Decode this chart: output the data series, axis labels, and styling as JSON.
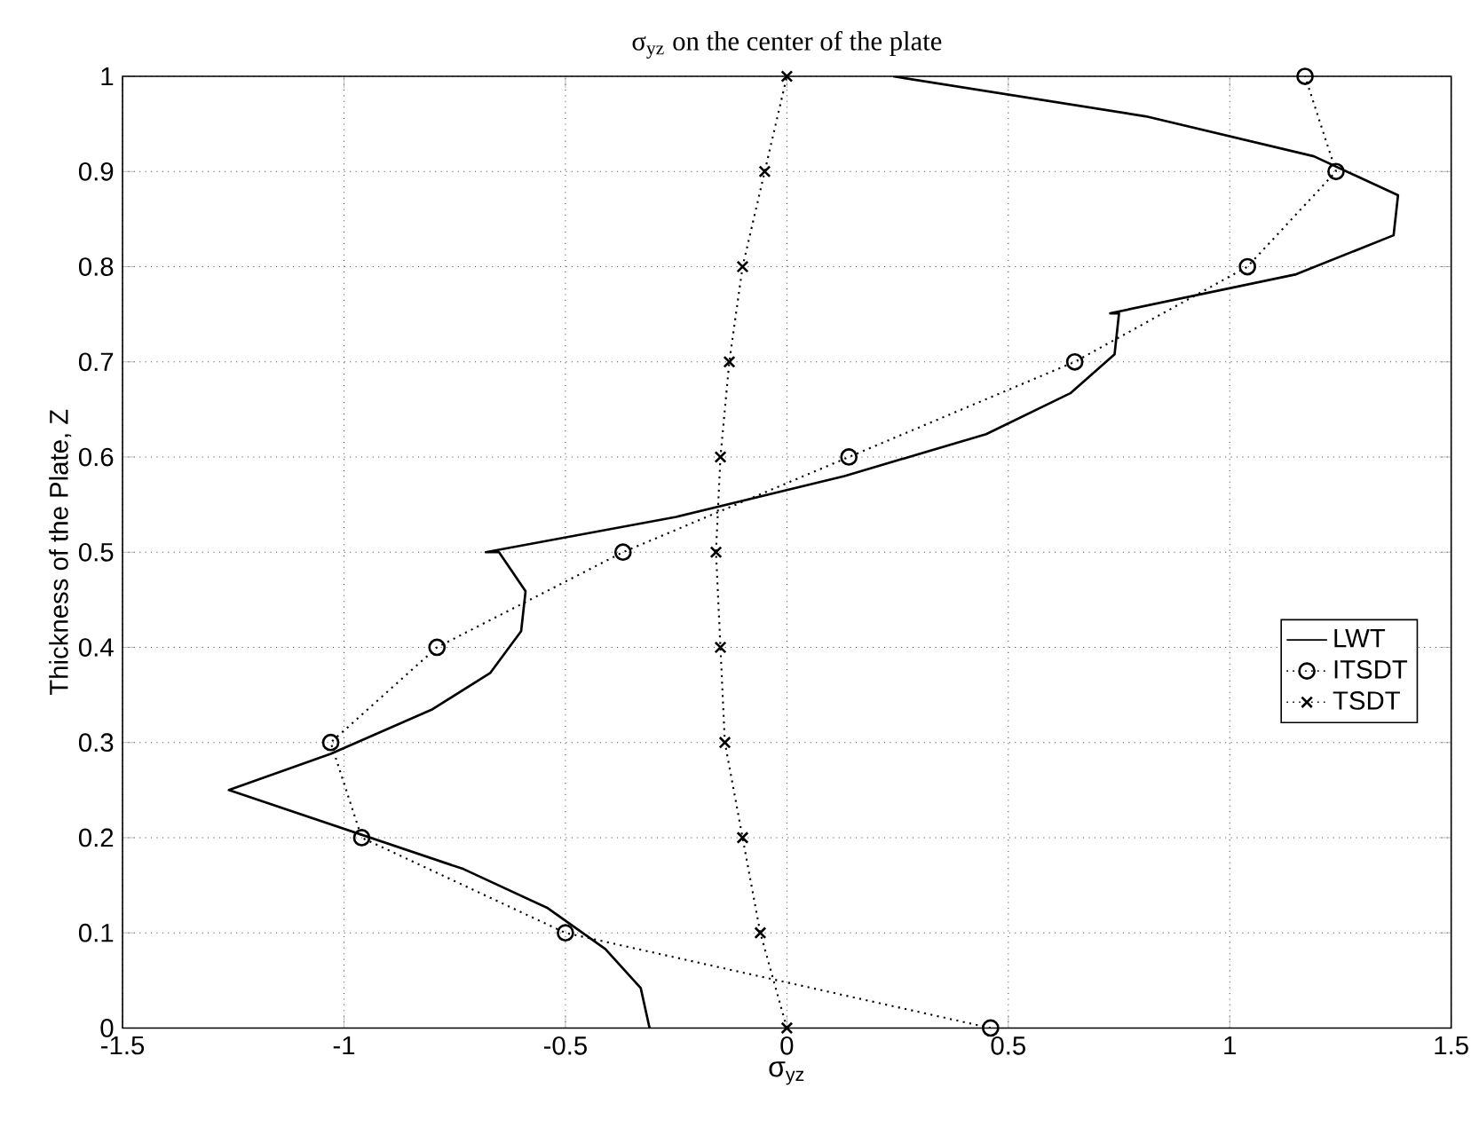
{
  "chart_data": {
    "type": "line",
    "title": "σ$_{yz}$ on the center of the plate",
    "xlabel": "σ$_{yz}$",
    "ylabel": "Thickness of the Plate, Z",
    "xlim": [
      -1.5,
      1.5
    ],
    "xticks": [
      -1.5,
      -1,
      -0.5,
      0,
      0.5,
      1,
      1.5
    ],
    "ylim": [
      0,
      1
    ],
    "yticks": [
      0,
      0.1,
      0.2,
      0.3,
      0.4,
      0.5,
      0.6,
      0.7,
      0.8,
      0.9,
      1
    ],
    "grid": true,
    "legend": "right",
    "series": [
      {
        "name": "LWT",
        "color": "#000000",
        "marker": "none",
        "line_style": "solid",
        "x": [
          -0.31,
          -0.33,
          -0.41,
          -0.54,
          -0.73,
          -1.26,
          -1.03,
          -0.8,
          -0.67,
          -0.6,
          -0.59,
          -0.65,
          -0.68,
          -0.25,
          0.13,
          0.45,
          0.64,
          0.74,
          0.75,
          0.73,
          1.15,
          1.37,
          1.38,
          1.19,
          0.81,
          0.24
        ],
        "values": [
          0,
          0.042,
          0.083,
          0.126,
          0.167,
          0.25,
          0.288,
          0.335,
          0.373,
          0.417,
          0.459,
          0.5,
          0.5,
          0.537,
          0.58,
          0.624,
          0.667,
          0.708,
          0.751,
          0.751,
          0.792,
          0.833,
          0.875,
          0.916,
          0.958,
          1
        ]
      },
      {
        "name": "ITSDT",
        "color": "#000000",
        "marker": "circle",
        "line_style": "dotted",
        "x": [
          0.46,
          -0.5,
          -0.96,
          -1.03,
          -0.79,
          -0.37,
          0.14,
          0.65,
          1.04,
          1.24,
          1.17
        ],
        "values": [
          0,
          0.1,
          0.2,
          0.3,
          0.4,
          0.5,
          0.6,
          0.7,
          0.8,
          0.9,
          1
        ]
      },
      {
        "name": "TSDT",
        "color": "#000000",
        "marker": "cross",
        "line_style": "dotted",
        "x": [
          0,
          -0.06,
          -0.1,
          -0.14,
          -0.15,
          -0.16,
          -0.15,
          -0.13,
          -0.1,
          -0.05,
          0
        ],
        "values": [
          0,
          0.1,
          0.2,
          0.3,
          0.4,
          0.5,
          0.6,
          0.7,
          0.8,
          0.9,
          1
        ]
      }
    ]
  }
}
